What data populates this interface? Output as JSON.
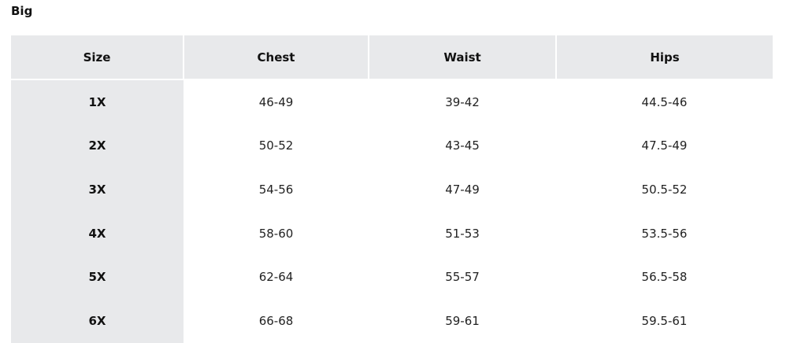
{
  "title": "Big",
  "table": {
    "headers": [
      "Size",
      "Chest",
      "Waist",
      "Hips"
    ],
    "rows": [
      [
        "1X",
        "46-49",
        "39-42",
        "44.5-46"
      ],
      [
        "2X",
        "50-52",
        "43-45",
        "47.5-49"
      ],
      [
        "3X",
        "54-56",
        "47-49",
        "50.5-52"
      ],
      [
        "4X",
        "58-60",
        "51-53",
        "53.5-56"
      ],
      [
        "5X",
        "62-64",
        "55-57",
        "56.5-58"
      ],
      [
        "6X",
        "66-68",
        "59-61",
        "59.5-61"
      ]
    ]
  }
}
